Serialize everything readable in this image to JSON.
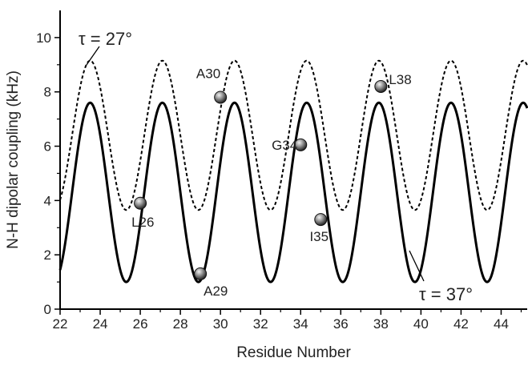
{
  "chart_data": {
    "type": "line",
    "xlabel": "Residue Number",
    "ylabel": "N-H dipolar coupling (kHz)",
    "xlim": [
      22,
      45.3
    ],
    "ylim": [
      0,
      11
    ],
    "x_ticks": [
      22,
      24,
      26,
      28,
      30,
      32,
      34,
      36,
      38,
      40,
      42,
      44
    ],
    "y_ticks": [
      0,
      2,
      4,
      6,
      8,
      10
    ],
    "grid": false,
    "series": [
      {
        "label": "τ = 27°",
        "style": "dashed",
        "mean": 6.4,
        "amplitude": 2.75,
        "period": 3.6,
        "phase_peak_x": 23.5,
        "max": 9.15,
        "min": 3.65
      },
      {
        "label": "τ = 37°",
        "style": "solid",
        "mean": 4.3,
        "amplitude": 3.3,
        "period": 3.6,
        "phase_peak_x": 23.5,
        "max": 7.6,
        "min": 1.0
      }
    ],
    "points": [
      {
        "label": "L26",
        "x": 26,
        "y": 3.9
      },
      {
        "label": "A29",
        "x": 29,
        "y": 1.3
      },
      {
        "label": "A30",
        "x": 30,
        "y": 7.8
      },
      {
        "label": "G34",
        "x": 34,
        "y": 6.05
      },
      {
        "label": "I35",
        "x": 35,
        "y": 3.3
      },
      {
        "label": "L38",
        "x": 38,
        "y": 8.2
      }
    ]
  }
}
